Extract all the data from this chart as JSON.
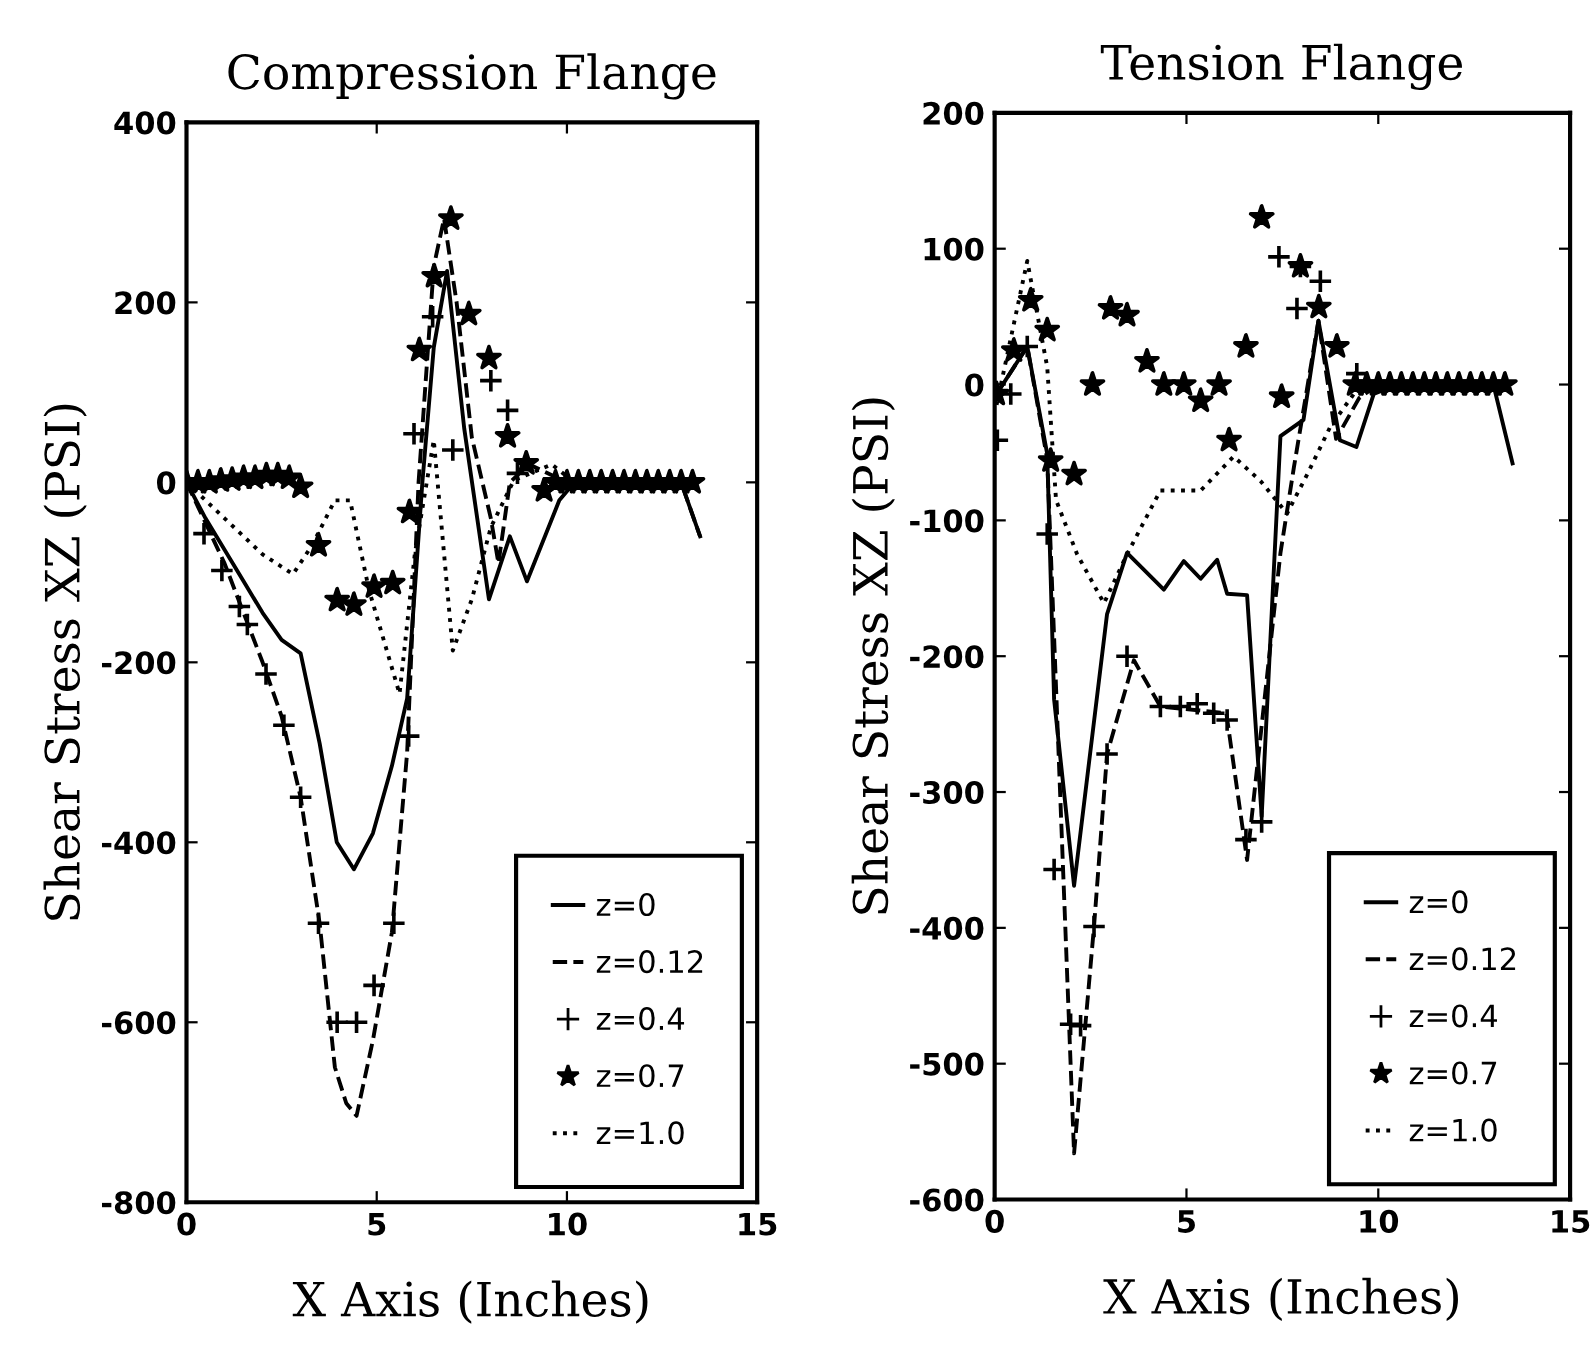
{
  "chart_data": [
    {
      "type": "line",
      "title": "Compression Flange",
      "xlabel": "X Axis (Inches)",
      "ylabel": "Shear Stress XZ (PSI)",
      "xlim": [
        0,
        15
      ],
      "xticks": [
        0,
        5,
        10,
        15
      ],
      "ylim": [
        -800,
        400
      ],
      "yticks": [
        -800,
        -600,
        -400,
        -200,
        0,
        200,
        400
      ],
      "grid": false,
      "legend": "bottom right",
      "series": [
        {
          "name": "z=0",
          "color": "#000000",
          "line_style": "solid",
          "marker": "none",
          "x": [
            0,
            0.5,
            1,
            1.5,
            2,
            2.5,
            3,
            3.5,
            3.95,
            4.4,
            4.9,
            5.4,
            5.8,
            6.2,
            6.5,
            6.85,
            7.3,
            7.95,
            8.5,
            8.95,
            9.8,
            10.2,
            11,
            12,
            13,
            13.5
          ],
          "values": [
            0,
            -40,
            -75,
            -110,
            -145,
            -175,
            -190,
            -290,
            -400,
            -430,
            -390,
            -315,
            -240,
            0,
            150,
            235,
            60,
            -130,
            -60,
            -110,
            -20,
            0,
            0,
            0,
            0,
            -60
          ]
        },
        {
          "name": "z=0.12",
          "color": "#000000",
          "line_style": "dashed",
          "marker": "none",
          "x": [
            0,
            1,
            2,
            2.5,
            3,
            3.5,
            3.9,
            4.2,
            4.47,
            4.9,
            5.4,
            5.8,
            6.1,
            6.5,
            6.77,
            7.1,
            7.5,
            8,
            8.2,
            8.5,
            9,
            10,
            13,
            13.5
          ],
          "values": [
            0,
            -90,
            -200,
            -260,
            -350,
            -490,
            -650,
            -690,
            -704,
            -620,
            -500,
            -300,
            0,
            240,
            293,
            200,
            50,
            -40,
            -90,
            0,
            20,
            0,
            0,
            -60
          ]
        },
        {
          "name": "z=0.4",
          "color": "#000000",
          "type": "scatter",
          "marker": "cross",
          "x": [
            0,
            0.46,
            0.93,
            1.39,
            1.6,
            2.09,
            2.56,
            3.0,
            3.47,
            3.96,
            4.47,
            4.93,
            5.45,
            5.84,
            5.98,
            6.47,
            7.0,
            8.0,
            8.44,
            8.7
          ],
          "values": [
            0,
            -57,
            -98,
            -138,
            -158,
            -213,
            -270,
            -350,
            -490,
            -600,
            -600,
            -559,
            -490,
            -282,
            54,
            184,
            36,
            113,
            80,
            10
          ]
        },
        {
          "name": "z=0.7",
          "color": "#000000",
          "type": "scatter",
          "marker": "star",
          "x": [
            0,
            0.3,
            0.6,
            0.9,
            1.2,
            1.5,
            1.8,
            2.1,
            2.4,
            2.7,
            3.0,
            3.47,
            3.96,
            4.4,
            4.93,
            5.42,
            5.86,
            6.12,
            6.51,
            6.95,
            7.42,
            7.95,
            8.44,
            8.93,
            9.4,
            9.7,
            10.0,
            10.3,
            10.6,
            10.9,
            11.2,
            11.5,
            11.8,
            12.1,
            12.4,
            12.7,
            13.0,
            13.3
          ],
          "values": [
            0,
            0,
            0,
            2,
            3,
            5,
            5,
            8,
            8,
            5,
            -5,
            -70,
            -131,
            -136,
            -116,
            -112,
            -33,
            147,
            229,
            293,
            187,
            138,
            51,
            21,
            -9,
            0,
            0,
            0,
            0,
            0,
            0,
            0,
            0,
            0,
            0,
            0,
            0,
            0
          ]
        },
        {
          "name": "z=1.0",
          "color": "#000000",
          "line_style": "dotted",
          "marker": "none",
          "x": [
            0,
            1,
            2,
            2.8,
            3.3,
            3.9,
            4.3,
            4.8,
            5.6,
            6.0,
            6.5,
            7.0,
            7.5,
            8.0,
            8.6,
            9.6,
            10.2,
            13.3
          ],
          "values": [
            0,
            -40,
            -80,
            -102,
            -70,
            -20,
            -20,
            -120,
            -235,
            -80,
            47,
            -187,
            -130,
            -50,
            2,
            20,
            0,
            0
          ]
        }
      ]
    },
    {
      "type": "line",
      "title": "Tension Flange",
      "xlabel": "X Axis (Inches)",
      "ylabel": "Shear Stress XZ (PSI)",
      "xlim": [
        0,
        15
      ],
      "xticks": [
        0,
        5,
        10,
        15
      ],
      "ylim": [
        -600,
        200
      ],
      "yticks": [
        -600,
        -500,
        -400,
        -300,
        -200,
        -100,
        0,
        100,
        200
      ],
      "grid": false,
      "legend": "bottom right",
      "series": [
        {
          "name": "z=0",
          "color": "#000000",
          "line_style": "solid",
          "marker": "none",
          "x": [
            0.05,
            0.85,
            1.37,
            1.55,
            2.07,
            2.93,
            3.45,
            4.41,
            4.93,
            5.37,
            5.8,
            6.06,
            6.58,
            6.96,
            7.45,
            8.05,
            8.44,
            9.0,
            9.43,
            9.88,
            10.5,
            13.0,
            13.5
          ],
          "values": [
            -7,
            28,
            -51,
            -232,
            -369,
            -169,
            -124,
            -151,
            -130,
            -143,
            -129,
            -154,
            -155,
            -318,
            -38,
            -26,
            47,
            -41,
            -46,
            -7,
            0,
            0,
            -58
          ]
        },
        {
          "name": "z=0.12",
          "color": "#000000",
          "line_style": "dashed",
          "marker": "none",
          "x": [
            0.05,
            0.85,
            1.37,
            2.07,
            2.59,
            2.93,
            3.63,
            4.32,
            6.04,
            6.58,
            7.45,
            7.8,
            8.44,
            8.9,
            9.5,
            10,
            13.0
          ],
          "values": [
            -7,
            28,
            -55,
            -566,
            -399,
            -272,
            -203,
            -237,
            -242,
            -350,
            -124,
            -61,
            47,
            -40,
            -10,
            0,
            0
          ]
        },
        {
          "name": "z=0.4",
          "color": "#000000",
          "type": "scatter",
          "marker": "cross",
          "x": [
            0.07,
            0.42,
            0.85,
            1.37,
            1.55,
            1.98,
            2.24,
            2.59,
            2.93,
            3.45,
            4.32,
            4.84,
            5.28,
            5.71,
            6.06,
            6.55,
            6.96,
            7.41,
            7.97,
            8.49,
            7.88,
            9.44
          ],
          "values": [
            -41,
            -7,
            28,
            -110,
            -357,
            -471,
            -472,
            -399,
            -272,
            -200,
            -237,
            -237,
            -235,
            -242,
            -247,
            -335,
            -322,
            94,
            87,
            76,
            56,
            8
          ]
        },
        {
          "name": "z=0.7",
          "color": "#000000",
          "type": "scatter",
          "marker": "star",
          "x": [
            0.05,
            0.5,
            0.94,
            1.37,
            1.46,
            2.07,
            2.55,
            3.02,
            3.45,
            3.97,
            4.41,
            4.93,
            5.37,
            5.85,
            6.11,
            6.55,
            6.96,
            7.48,
            7.97,
            8.45,
            8.92,
            9.4,
            9.7,
            10.0,
            10.3,
            10.6,
            10.9,
            11.2,
            11.5,
            11.8,
            12.1,
            12.4,
            12.7,
            13.0,
            13.3
          ],
          "values": [
            -7,
            25,
            62,
            40,
            -56,
            -66,
            0,
            56,
            51,
            17,
            0,
            0,
            -12,
            0,
            -41,
            28,
            123,
            -9,
            87,
            57,
            28,
            0,
            0,
            0,
            0,
            0,
            0,
            0,
            0,
            0,
            0,
            0,
            0,
            0,
            0
          ]
        },
        {
          "name": "z=1.0",
          "color": "#000000",
          "line_style": "dotted",
          "marker": "none",
          "x": [
            0.05,
            0.85,
            1.37,
            1.6,
            2.15,
            2.85,
            3.45,
            4.32,
            5.37,
            6.23,
            6.93,
            7.62,
            8.15,
            8.75,
            9.36,
            10,
            13.0
          ],
          "values": [
            -15,
            91,
            13,
            -85,
            -125,
            -161,
            -125,
            -78,
            -78,
            -53,
            -71,
            -95,
            -66,
            -31,
            -7,
            0,
            0
          ]
        }
      ]
    }
  ]
}
